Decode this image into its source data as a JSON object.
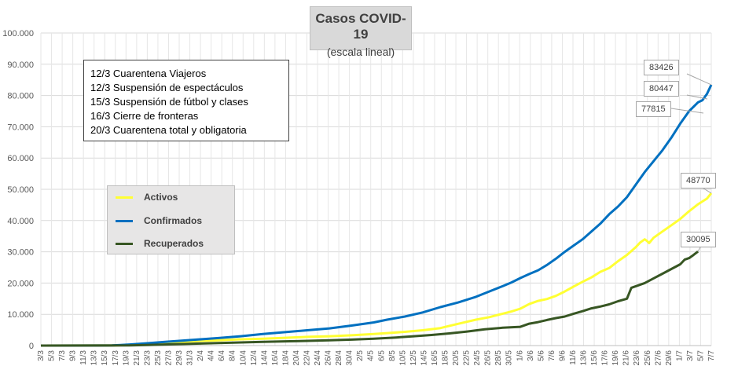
{
  "chart_data": {
    "type": "line",
    "title": "Casos  COVID-19",
    "subtitle": "(escala lineal)",
    "xlabel": "",
    "ylabel": "",
    "ylim": [
      0,
      100000
    ],
    "y_ticks": [
      "0",
      "10.000",
      "20.000",
      "30.000",
      "40.000",
      "50.000",
      "60.000",
      "70.000",
      "80.000",
      "90.000",
      "100.000"
    ],
    "x_tick_labels": [
      "3/3",
      "5/3",
      "7/3",
      "9/3",
      "11/3",
      "13/3",
      "15/3",
      "17/3",
      "19/3",
      "21/3",
      "23/3",
      "25/3",
      "27/3",
      "29/3",
      "31/3",
      "2/4",
      "4/4",
      "6/4",
      "8/4",
      "10/4",
      "12/4",
      "14/4",
      "16/4",
      "18/4",
      "20/4",
      "22/4",
      "24/4",
      "26/4",
      "28/4",
      "30/4",
      "2/5",
      "4/5",
      "6/5",
      "8/5",
      "10/5",
      "12/5",
      "14/5",
      "16/5",
      "18/5",
      "20/5",
      "22/5",
      "24/5",
      "26/5",
      "28/5",
      "30/5",
      "1/6",
      "3/6",
      "5/6",
      "7/6",
      "9/6",
      "11/6",
      "13/6",
      "15/6",
      "17/6",
      "19/6",
      "21/6",
      "23/6",
      "25/6",
      "27/6",
      "29/6",
      "1/7",
      "3/7",
      "5/7",
      "7/7"
    ],
    "x_days": [
      0,
      126
    ],
    "series": [
      {
        "name": "Activos",
        "color": "#ffff33",
        "points": [
          [
            0,
            0
          ],
          [
            16,
            30
          ],
          [
            18,
            120
          ],
          [
            20,
            250
          ],
          [
            24,
            500
          ],
          [
            28,
            800
          ],
          [
            32,
            1200
          ],
          [
            36,
            1500
          ],
          [
            40,
            1700
          ],
          [
            45,
            2000
          ],
          [
            50,
            2200
          ],
          [
            55,
            2500
          ],
          [
            60,
            2800
          ],
          [
            65,
            3000
          ],
          [
            70,
            3300
          ],
          [
            75,
            3700
          ],
          [
            78,
            4000
          ],
          [
            82,
            4400
          ],
          [
            86,
            4900
          ],
          [
            90,
            5600
          ],
          [
            92,
            6300
          ],
          [
            95,
            7300
          ],
          [
            98,
            8300
          ],
          [
            101,
            9100
          ],
          [
            104,
            10200
          ],
          [
            106,
            10900
          ],
          [
            108,
            11800
          ],
          [
            110,
            13300
          ],
          [
            112,
            14300
          ],
          [
            114,
            14900
          ],
          [
            116,
            15900
          ],
          [
            118,
            17300
          ],
          [
            120,
            18900
          ],
          [
            122,
            20400
          ],
          [
            124,
            21800
          ],
          [
            126,
            23600
          ],
          [
            128,
            24800
          ],
          [
            130,
            27000
          ],
          [
            132,
            29000
          ],
          [
            134,
            31500
          ],
          [
            135,
            33000
          ],
          [
            136,
            34000
          ],
          [
            136.5,
            33500
          ],
          [
            137,
            32800
          ],
          [
            138,
            34500
          ],
          [
            140,
            36500
          ],
          [
            142,
            38500
          ],
          [
            144,
            40500
          ],
          [
            146,
            43000
          ],
          [
            148,
            45200
          ],
          [
            150,
            47000
          ],
          [
            151,
            48770
          ]
        ]
      },
      {
        "name": "Confirmados",
        "color": "#0070c0",
        "points": [
          [
            0,
            0
          ],
          [
            16,
            50
          ],
          [
            18,
            200
          ],
          [
            20,
            350
          ],
          [
            24,
            750
          ],
          [
            28,
            1200
          ],
          [
            32,
            1600
          ],
          [
            36,
            2000
          ],
          [
            40,
            2400
          ],
          [
            45,
            3000
          ],
          [
            50,
            3700
          ],
          [
            55,
            4300
          ],
          [
            60,
            4900
          ],
          [
            65,
            5500
          ],
          [
            70,
            6400
          ],
          [
            75,
            7400
          ],
          [
            78,
            8300
          ],
          [
            82,
            9300
          ],
          [
            86,
            10600
          ],
          [
            90,
            12300
          ],
          [
            94,
            13800
          ],
          [
            98,
            15600
          ],
          [
            101,
            17300
          ],
          [
            104,
            19000
          ],
          [
            106,
            20200
          ],
          [
            108,
            21600
          ],
          [
            110,
            22900
          ],
          [
            112,
            24100
          ],
          [
            114,
            25800
          ],
          [
            116,
            27800
          ],
          [
            118,
            30000
          ],
          [
            120,
            32000
          ],
          [
            122,
            34000
          ],
          [
            124,
            36500
          ],
          [
            126,
            39000
          ],
          [
            128,
            42000
          ],
          [
            130,
            44500
          ],
          [
            132,
            47500
          ],
          [
            134,
            51500
          ],
          [
            136,
            55500
          ],
          [
            138,
            59000
          ],
          [
            140,
            62500
          ],
          [
            142,
            66500
          ],
          [
            144,
            71000
          ],
          [
            146,
            75000
          ],
          [
            148,
            77815
          ],
          [
            149,
            78500
          ],
          [
            150,
            80447
          ],
          [
            151,
            83426
          ]
        ]
      },
      {
        "name": "Recuperados",
        "color": "#375623",
        "points": [
          [
            0,
            0
          ],
          [
            20,
            60
          ],
          [
            24,
            200
          ],
          [
            28,
            350
          ],
          [
            32,
            500
          ],
          [
            36,
            650
          ],
          [
            40,
            800
          ],
          [
            45,
            1000
          ],
          [
            50,
            1200
          ],
          [
            55,
            1350
          ],
          [
            60,
            1500
          ],
          [
            65,
            1700
          ],
          [
            70,
            1900
          ],
          [
            75,
            2200
          ],
          [
            80,
            2600
          ],
          [
            84,
            3000
          ],
          [
            88,
            3400
          ],
          [
            92,
            3900
          ],
          [
            96,
            4500
          ],
          [
            100,
            5200
          ],
          [
            104,
            5700
          ],
          [
            108,
            6000
          ],
          [
            110,
            7000
          ],
          [
            112,
            7500
          ],
          [
            114,
            8200
          ],
          [
            116,
            8800
          ],
          [
            118,
            9300
          ],
          [
            120,
            10200
          ],
          [
            122,
            11000
          ],
          [
            124,
            11900
          ],
          [
            126,
            12500
          ],
          [
            128,
            13200
          ],
          [
            130,
            14200
          ],
          [
            132,
            15000
          ],
          [
            133,
            18500
          ],
          [
            134,
            19000
          ],
          [
            136,
            20000
          ],
          [
            138,
            21500
          ],
          [
            140,
            23000
          ],
          [
            142,
            24500
          ],
          [
            144,
            26000
          ],
          [
            145,
            27500
          ],
          [
            146,
            28000
          ],
          [
            147,
            29000
          ],
          [
            148,
            30095
          ]
        ]
      }
    ],
    "callouts": [
      {
        "label": "83426",
        "series": "Confirmados"
      },
      {
        "label": "80447",
        "series": "Confirmados"
      },
      {
        "label": "77815",
        "series": "Confirmados"
      },
      {
        "label": "48770",
        "series": "Activos"
      },
      {
        "label": "30095",
        "series": "Recuperados"
      }
    ]
  },
  "notes": [
    "12/3 Cuarentena Viajeros",
    "12/3 Suspensión de espectáculos",
    "15/3 Suspensión de fútbol y clases",
    "16/3 Cierre de fronteras",
    "20/3 Cuarentena total y obligatoria"
  ],
  "legend": [
    {
      "label": "Activos",
      "color": "#ffff33"
    },
    {
      "label": "Confirmados",
      "color": "#0070c0"
    },
    {
      "label": "Recuperados",
      "color": "#375623"
    }
  ]
}
